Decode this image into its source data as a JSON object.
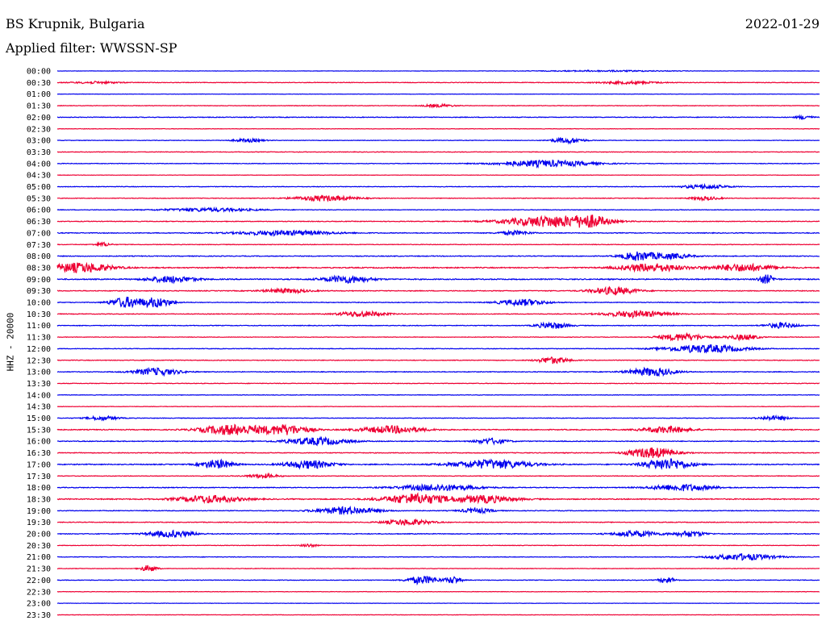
{
  "header": {
    "station": "BS Krupnik, Bulgaria",
    "filter": "Applied filter: WWSSN-SP",
    "date": "2022-01-29"
  },
  "chart_data": {
    "type": "line",
    "subtype": "helicorder",
    "title": "BS Krupnik, Bulgaria",
    "ylabel": "HHZ - 20000",
    "colors": {
      "even": "#0000ee",
      "odd": "#ee0033"
    },
    "rows": [
      {
        "label": "00:00",
        "amplitude": 0.2,
        "events": [
          [
            0.72,
            0.08,
            0.15
          ]
        ]
      },
      {
        "label": "00:30",
        "amplitude": 0.35,
        "events": [
          [
            0.05,
            0.03,
            0.25
          ],
          [
            0.75,
            0.04,
            0.3
          ]
        ]
      },
      {
        "label": "01:00",
        "amplitude": 0.2,
        "events": []
      },
      {
        "label": "01:30",
        "amplitude": 0.3,
        "events": [
          [
            0.5,
            0.02,
            0.35
          ]
        ]
      },
      {
        "label": "02:00",
        "amplitude": 0.4,
        "events": [
          [
            0.98,
            0.01,
            0.5
          ]
        ]
      },
      {
        "label": "02:30",
        "amplitude": 0.25,
        "events": []
      },
      {
        "label": "03:00",
        "amplitude": 0.3,
        "events": [
          [
            0.25,
            0.02,
            0.4
          ],
          [
            0.67,
            0.02,
            0.7
          ]
        ]
      },
      {
        "label": "03:30",
        "amplitude": 0.35,
        "events": []
      },
      {
        "label": "04:00",
        "amplitude": 0.35,
        "events": [
          [
            0.64,
            0.06,
            0.8
          ]
        ]
      },
      {
        "label": "04:30",
        "amplitude": 0.2,
        "events": []
      },
      {
        "label": "05:00",
        "amplitude": 0.35,
        "events": [
          [
            0.85,
            0.03,
            0.5
          ]
        ]
      },
      {
        "label": "05:30",
        "amplitude": 0.35,
        "events": [
          [
            0.35,
            0.04,
            0.65
          ],
          [
            0.85,
            0.02,
            0.4
          ]
        ]
      },
      {
        "label": "06:00",
        "amplitude": 0.35,
        "events": [
          [
            0.2,
            0.06,
            0.4
          ]
        ]
      },
      {
        "label": "06:30",
        "amplitude": 0.4,
        "events": [
          [
            0.65,
            0.06,
            1.4
          ],
          [
            0.7,
            0.02,
            1.0
          ]
        ]
      },
      {
        "label": "07:00",
        "amplitude": 0.45,
        "events": [
          [
            0.3,
            0.06,
            0.6
          ],
          [
            0.6,
            0.02,
            0.5
          ]
        ]
      },
      {
        "label": "07:30",
        "amplitude": 0.35,
        "events": [
          [
            0.06,
            0.01,
            0.5
          ]
        ]
      },
      {
        "label": "08:00",
        "amplitude": 0.45,
        "events": [
          [
            0.76,
            0.02,
            1.0
          ],
          [
            0.8,
            0.03,
            0.7
          ]
        ]
      },
      {
        "label": "08:30",
        "amplitude": 0.6,
        "events": [
          [
            0.03,
            0.04,
            1.2
          ],
          [
            0.78,
            0.04,
            1.0
          ],
          [
            0.9,
            0.04,
            0.9
          ]
        ]
      },
      {
        "label": "09:00",
        "amplitude": 0.6,
        "events": [
          [
            0.15,
            0.03,
            0.8
          ],
          [
            0.38,
            0.03,
            0.9
          ],
          [
            0.93,
            0.01,
            1.1
          ]
        ]
      },
      {
        "label": "09:30",
        "amplitude": 0.45,
        "events": [
          [
            0.3,
            0.03,
            0.5
          ],
          [
            0.73,
            0.03,
            0.9
          ]
        ]
      },
      {
        "label": "10:00",
        "amplitude": 0.4,
        "events": [
          [
            0.09,
            0.02,
            1.3
          ],
          [
            0.13,
            0.02,
            1.2
          ],
          [
            0.61,
            0.03,
            0.8
          ]
        ]
      },
      {
        "label": "10:30",
        "amplitude": 0.4,
        "events": [
          [
            0.4,
            0.03,
            0.7
          ],
          [
            0.76,
            0.04,
            0.8
          ]
        ]
      },
      {
        "label": "11:00",
        "amplitude": 0.4,
        "events": [
          [
            0.65,
            0.02,
            0.8
          ],
          [
            0.95,
            0.02,
            0.7
          ]
        ]
      },
      {
        "label": "11:30",
        "amplitude": 0.3,
        "events": [
          [
            0.82,
            0.03,
            0.9
          ],
          [
            0.9,
            0.02,
            0.7
          ]
        ]
      },
      {
        "label": "12:00",
        "amplitude": 0.35,
        "events": [
          [
            0.85,
            0.05,
            1.0
          ]
        ]
      },
      {
        "label": "12:30",
        "amplitude": 0.4,
        "events": [
          [
            0.65,
            0.02,
            0.8
          ]
        ]
      },
      {
        "label": "13:00",
        "amplitude": 0.4,
        "events": [
          [
            0.13,
            0.03,
            0.9
          ],
          [
            0.78,
            0.03,
            1.0
          ]
        ]
      },
      {
        "label": "13:30",
        "amplitude": 0.35,
        "events": []
      },
      {
        "label": "14:00",
        "amplitude": 0.3,
        "events": []
      },
      {
        "label": "14:30",
        "amplitude": 0.25,
        "events": []
      },
      {
        "label": "15:00",
        "amplitude": 0.35,
        "events": [
          [
            0.06,
            0.02,
            0.5
          ],
          [
            0.94,
            0.02,
            0.5
          ]
        ]
      },
      {
        "label": "15:30",
        "amplitude": 0.5,
        "events": [
          [
            0.23,
            0.04,
            1.3
          ],
          [
            0.3,
            0.03,
            1.2
          ],
          [
            0.44,
            0.04,
            0.9
          ],
          [
            0.8,
            0.03,
            0.8
          ]
        ]
      },
      {
        "label": "16:00",
        "amplitude": 0.45,
        "events": [
          [
            0.34,
            0.04,
            0.9
          ],
          [
            0.57,
            0.02,
            0.7
          ]
        ]
      },
      {
        "label": "16:30",
        "amplitude": 0.45,
        "events": [
          [
            0.78,
            0.03,
            1.3
          ]
        ]
      },
      {
        "label": "17:00",
        "amplitude": 0.55,
        "events": [
          [
            0.21,
            0.02,
            1.1
          ],
          [
            0.33,
            0.03,
            1.0
          ],
          [
            0.57,
            0.05,
            1.1
          ],
          [
            0.8,
            0.03,
            1.4
          ]
        ]
      },
      {
        "label": "17:30",
        "amplitude": 0.35,
        "events": [
          [
            0.27,
            0.02,
            0.5
          ]
        ]
      },
      {
        "label": "18:00",
        "amplitude": 0.45,
        "events": [
          [
            0.5,
            0.05,
            0.8
          ],
          [
            0.82,
            0.04,
            0.8
          ]
        ]
      },
      {
        "label": "18:30",
        "amplitude": 0.6,
        "events": [
          [
            0.2,
            0.04,
            0.9
          ],
          [
            0.47,
            0.04,
            1.3
          ],
          [
            0.56,
            0.04,
            0.9
          ]
        ]
      },
      {
        "label": "19:00",
        "amplitude": 0.4,
        "events": [
          [
            0.38,
            0.04,
            0.9
          ],
          [
            0.55,
            0.02,
            0.6
          ]
        ]
      },
      {
        "label": "19:30",
        "amplitude": 0.4,
        "events": [
          [
            0.46,
            0.03,
            0.7
          ]
        ]
      },
      {
        "label": "20:00",
        "amplitude": 0.45,
        "events": [
          [
            0.15,
            0.03,
            0.8
          ],
          [
            0.76,
            0.03,
            0.7
          ],
          [
            0.83,
            0.02,
            0.7
          ]
        ]
      },
      {
        "label": "20:30",
        "amplitude": 0.3,
        "events": [
          [
            0.33,
            0.01,
            0.4
          ]
        ]
      },
      {
        "label": "21:00",
        "amplitude": 0.35,
        "events": [
          [
            0.9,
            0.04,
            0.8
          ]
        ]
      },
      {
        "label": "21:30",
        "amplitude": 0.3,
        "events": [
          [
            0.12,
            0.01,
            0.8
          ]
        ]
      },
      {
        "label": "22:00",
        "amplitude": 0.35,
        "events": [
          [
            0.48,
            0.02,
            1.0
          ],
          [
            0.52,
            0.01,
            0.9
          ],
          [
            0.8,
            0.01,
            0.8
          ]
        ]
      },
      {
        "label": "22:30",
        "amplitude": 0.25,
        "events": []
      },
      {
        "label": "23:00",
        "amplitude": 0.2,
        "events": []
      },
      {
        "label": "23:30",
        "amplitude": 0.25,
        "events": []
      }
    ]
  }
}
